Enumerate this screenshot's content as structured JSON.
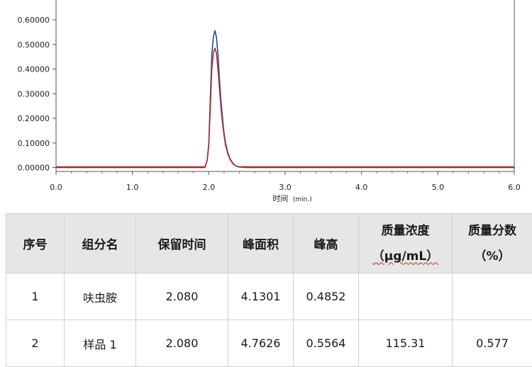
{
  "chart_data": {
    "type": "line",
    "xlabel": "时间",
    "xlabel_unit": "(min.)",
    "x_ticks": [
      "0.0",
      "1.0",
      "2.0",
      "3.0",
      "4.0",
      "5.0",
      "6.0"
    ],
    "y_ticks": [
      "0.00000",
      "0.10000",
      "0.20000",
      "0.30000",
      "0.40000",
      "0.50000",
      "0.60000"
    ],
    "xlim": [
      0,
      6
    ],
    "ylim": [
      0,
      0.6
    ],
    "grid": false,
    "series": [
      {
        "color": "#1f4e9e",
        "x": [
          0,
          1.95,
          1.98,
          2.0,
          2.02,
          2.04,
          2.06,
          2.08,
          2.1,
          2.12,
          2.14,
          2.16,
          2.18,
          2.2,
          2.22,
          2.25,
          2.28,
          2.32,
          2.36,
          2.4,
          2.5,
          6
        ],
        "y": [
          0,
          0.0,
          0.03,
          0.1,
          0.28,
          0.46,
          0.53,
          0.5564,
          0.53,
          0.46,
          0.36,
          0.27,
          0.2,
          0.14,
          0.1,
          0.06,
          0.035,
          0.015,
          0.006,
          0.002,
          0,
          0
        ]
      },
      {
        "color": "#b03030",
        "x": [
          0,
          1.95,
          1.98,
          2.0,
          2.02,
          2.04,
          2.06,
          2.08,
          2.1,
          2.12,
          2.14,
          2.16,
          2.18,
          2.2,
          2.22,
          2.25,
          2.28,
          2.32,
          2.36,
          2.4,
          2.5,
          6
        ],
        "y": [
          0.003,
          0.003,
          0.03,
          0.09,
          0.24,
          0.4,
          0.465,
          0.4852,
          0.465,
          0.4,
          0.32,
          0.24,
          0.18,
          0.13,
          0.09,
          0.055,
          0.032,
          0.014,
          0.006,
          0.003,
          0.003,
          0.003
        ]
      }
    ]
  },
  "table": {
    "headers": {
      "index": "序号",
      "component": "组分名",
      "retention_time": "保留时间",
      "peak_area": "峰面积",
      "peak_height": "峰高",
      "mass_conc": "质量浓度",
      "mass_conc_unit": "（μg/mL）",
      "mass_frac": "质量分数",
      "mass_frac_unit": "（%）"
    },
    "rows": [
      {
        "index": "1",
        "component": "呋虫胺",
        "retention_time": "2.080",
        "peak_area": "4.1301",
        "peak_height": "0.4852",
        "mass_conc": "",
        "mass_frac": ""
      },
      {
        "index": "2",
        "component": "样品 1",
        "retention_time": "2.080",
        "peak_area": "4.7626",
        "peak_height": "0.5564",
        "mass_conc": "115.31",
        "mass_frac": "0.577"
      }
    ]
  }
}
